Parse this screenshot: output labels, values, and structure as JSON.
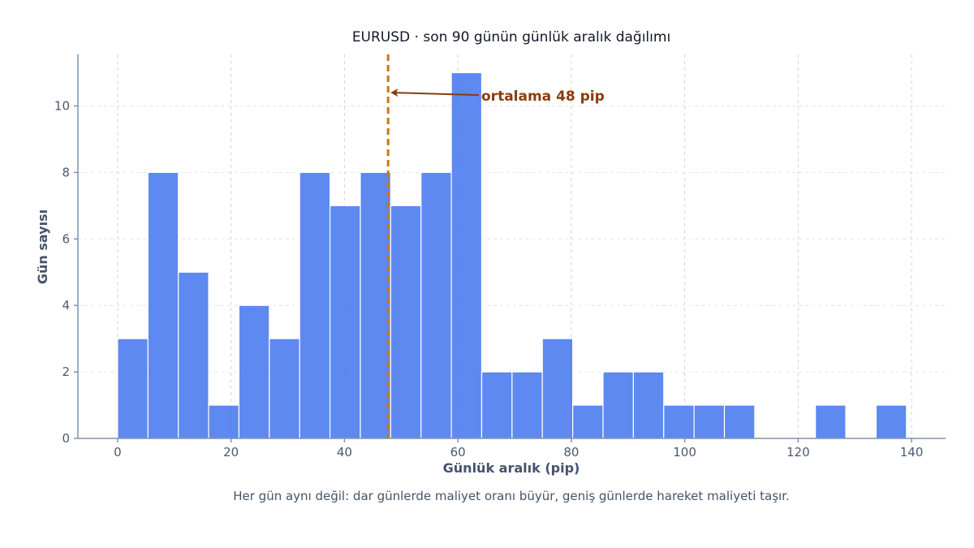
{
  "chart_data": {
    "type": "bar",
    "title": "EURUSD · son 90 günün günlük aralık dağılımı",
    "xlabel": "Günlük aralık (pip)",
    "ylabel": "Gün sayısı",
    "caption": "Her gün aynı değil: dar günlerde maliyet oranı büyür, geniş günlerde hareket maliyeti taşır.",
    "bin_edges": [
      0,
      5.35,
      10.7,
      16.05,
      21.4,
      26.75,
      32.1,
      37.45,
      42.8,
      48.15,
      53.5,
      58.85,
      64.2,
      69.55,
      74.9,
      80.25,
      85.6,
      90.95,
      96.3,
      101.65,
      107.0,
      112.35,
      117.7,
      123.05,
      128.4,
      133.75,
      139.1
    ],
    "values": [
      3,
      8,
      5,
      1,
      4,
      3,
      8,
      7,
      8,
      7,
      8,
      11,
      2,
      2,
      3,
      1,
      2,
      2,
      1,
      1,
      1,
      0,
      0,
      1,
      0,
      1
    ],
    "xlim": [
      -7,
      146
    ],
    "ylim": [
      0,
      11.55
    ],
    "x_ticks": [
      "0",
      "20",
      "40",
      "60",
      "80",
      "100",
      "120",
      "140"
    ],
    "y_ticks": [
      "0",
      "2",
      "4",
      "6",
      "8",
      "10"
    ],
    "grid": true,
    "mean": 47.7,
    "mean_label": "ortalama 48 pip",
    "colors": {
      "bar": "#4f7fef",
      "mean_line": "#c77716",
      "annotation": "#8a3d0c"
    }
  }
}
